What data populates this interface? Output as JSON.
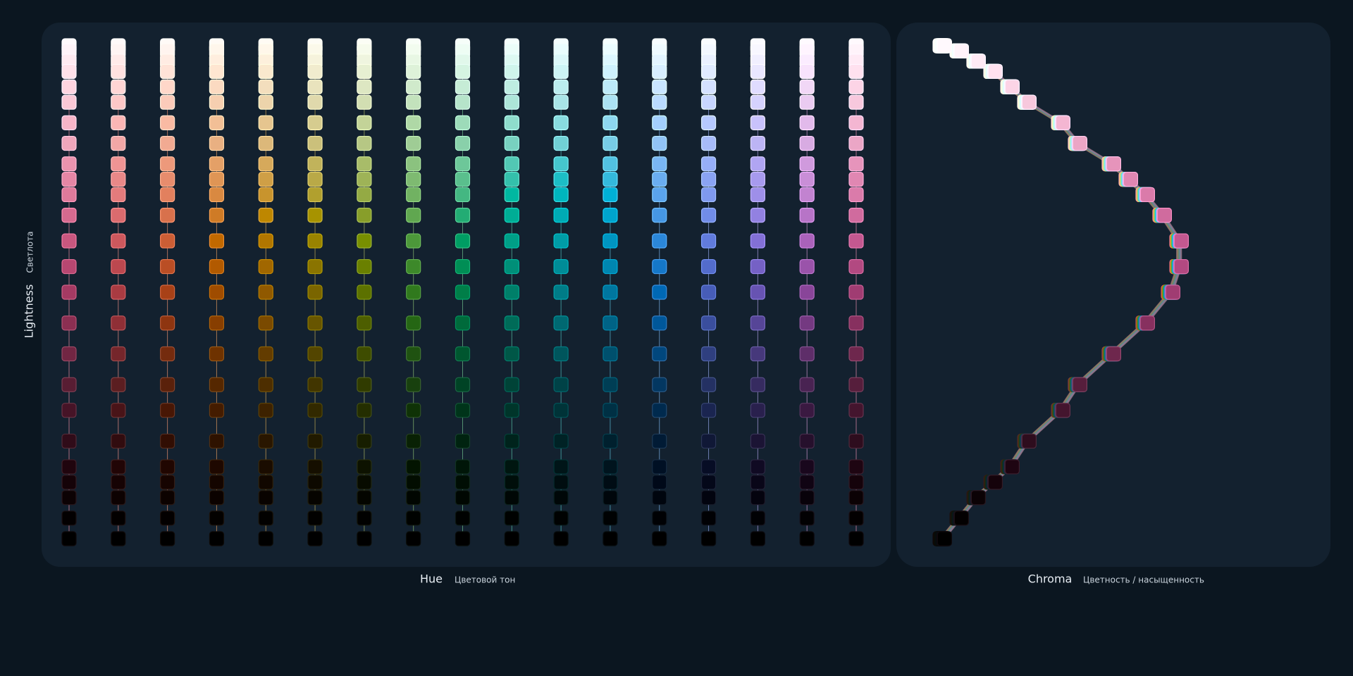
{
  "chart_data": {
    "type": "palette",
    "x_label": "Hue",
    "x_sublabel": "Цветовой тон",
    "y_label": "Lightness",
    "y_sublabel": "Светлота",
    "x2_label": "Chroma",
    "x2_sublabel": "Цветность / насыщенность",
    "hues": [
      0,
      20,
      40,
      60,
      80,
      100,
      120,
      140,
      160,
      180,
      200,
      220,
      250,
      270,
      290,
      320,
      350
    ],
    "lightness": [
      99,
      98,
      96,
      94,
      91,
      88,
      84,
      80,
      76,
      73,
      70,
      66,
      61,
      56,
      51,
      45,
      39,
      33,
      28,
      22,
      17,
      14,
      11,
      7,
      3
    ],
    "chroma": [
      0.01,
      0.02,
      0.03,
      0.04,
      0.05,
      0.06,
      0.08,
      0.09,
      0.11,
      0.12,
      0.13,
      0.14,
      0.15,
      0.15,
      0.145,
      0.13,
      0.11,
      0.09,
      0.08,
      0.06,
      0.05,
      0.04,
      0.03,
      0.02,
      0.01
    ],
    "ylim": [
      3,
      99
    ],
    "xlim": [
      0,
      0.15
    ]
  }
}
